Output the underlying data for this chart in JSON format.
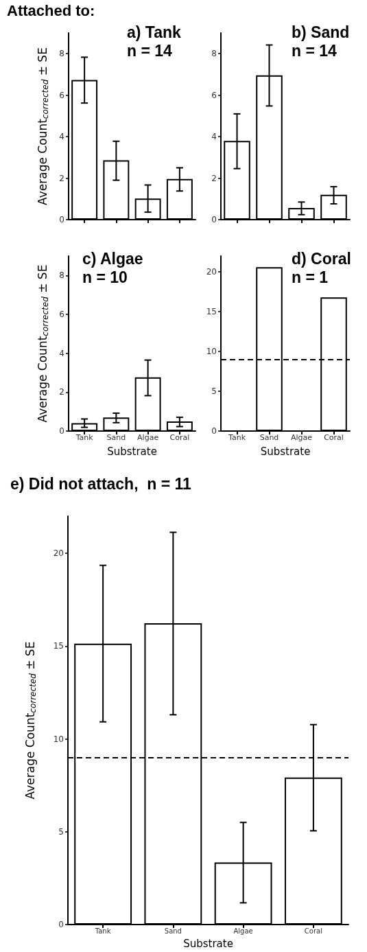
{
  "chart_data": [
    {
      "type": "bar",
      "title": "a) Tank",
      "subtitle": "n = 14",
      "annotations": [
        "Attached to:"
      ],
      "ylabel": "Average Count$_{corrected}$ ± SE",
      "categories": [
        null,
        null,
        null,
        null
      ],
      "values": [
        6.73,
        2.86,
        1.02,
        1.96
      ],
      "errors": [
        [
          5.62,
          7.83
        ],
        [
          1.9,
          3.78
        ],
        [
          0.36,
          1.67
        ],
        [
          1.38,
          2.5
        ]
      ],
      "color": "#ffffff",
      "ylim": [
        0,
        9
      ],
      "yticks": [
        0,
        2,
        4,
        6,
        8
      ],
      "tick_labels": "y",
      "grid": false
    },
    {
      "type": "bar",
      "title": "b) Sand",
      "subtitle": "n = 14",
      "categories": [
        null,
        null,
        null,
        null
      ],
      "values": [
        3.8,
        6.96,
        0.56,
        1.2
      ],
      "errors": [
        [
          2.46,
          5.1
        ],
        [
          5.48,
          8.42
        ],
        [
          0.24,
          0.85
        ],
        [
          0.76,
          1.59
        ]
      ],
      "color": "#ffffff",
      "ylim": [
        0,
        9
      ],
      "yticks": [
        0,
        2,
        4,
        6,
        8
      ],
      "tick_labels": "y",
      "grid": false
    },
    {
      "type": "bar",
      "title": "c) Algae",
      "subtitle": "n = 10",
      "ylabel": "Average Count$_{corrected}$ ± SE",
      "xlabel": "Substrate",
      "categories": [
        "Tank",
        "Sand",
        "Algae",
        "Coral"
      ],
      "values": [
        0.41,
        0.7,
        2.76,
        0.49
      ],
      "errors": [
        [
          0.19,
          0.62
        ],
        [
          0.43,
          0.92
        ],
        [
          1.82,
          3.65
        ],
        [
          0.23,
          0.71
        ]
      ],
      "color": "#ffffff",
      "ylim": [
        0,
        9
      ],
      "yticks": [
        0,
        2,
        4,
        6,
        8
      ],
      "grid": false
    },
    {
      "type": "bar",
      "title": "d) Coral",
      "subtitle": "n = 1",
      "xlabel": "Substrate",
      "categories": [
        "Tank",
        "Sand",
        "Algae",
        "Coral"
      ],
      "values": [
        null,
        20.6,
        null,
        16.8
      ],
      "color": "#ffffff",
      "ylim": [
        0,
        22
      ],
      "yticks": [
        0,
        5,
        10,
        15,
        20
      ],
      "ref_lines": [
        {
          "axis": "y",
          "value": 9,
          "line_style": "dashed",
          "color": "#000000"
        }
      ],
      "grid": false
    },
    {
      "type": "bar",
      "title": "e) Did not attach,  n = 11",
      "ylabel": "Average Count$_{corrected}$ ± SE",
      "xlabel": "Substrate",
      "categories": [
        "Tank",
        "Sand",
        "Algae",
        "Coral"
      ],
      "values": [
        15.13,
        16.23,
        3.35,
        7.92
      ],
      "errors": [
        [
          10.92,
          19.35
        ],
        [
          11.3,
          21.13
        ],
        [
          1.17,
          5.5
        ],
        [
          5.05,
          10.77
        ]
      ],
      "color": "#ffffff",
      "ylim": [
        0,
        22
      ],
      "yticks": [
        0,
        5,
        10,
        15,
        20
      ],
      "ref_lines": [
        {
          "axis": "y",
          "value": 9,
          "line_style": "dashed",
          "color": "#000000"
        }
      ],
      "grid": false
    }
  ]
}
